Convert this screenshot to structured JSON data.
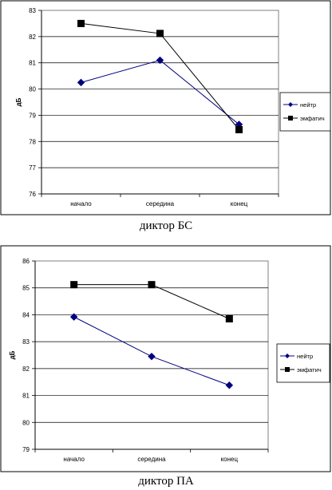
{
  "chart_data": [
    {
      "type": "line",
      "title": "диктор БС",
      "ylabel": "дБ",
      "xlabel": "",
      "categories": [
        "начало",
        "середина",
        "конец"
      ],
      "ylim": [
        76,
        83
      ],
      "yticks": [
        "76",
        "77",
        "78",
        "79",
        "80",
        "81",
        "82",
        "83"
      ],
      "grid": "horizontal",
      "legend_position": "right",
      "series": [
        {
          "name": "нейтр",
          "values": [
            80.25,
            81.1,
            78.65
          ],
          "color": "#00007f",
          "marker": "diamond"
        },
        {
          "name": "эмфатич",
          "values": [
            82.5,
            82.12,
            78.45
          ],
          "color": "#000000",
          "marker": "square"
        }
      ]
    },
    {
      "type": "line",
      "title": "диктор ПА",
      "ylabel": "дБ",
      "xlabel": "",
      "categories": [
        "начало",
        "середина",
        "конец"
      ],
      "ylim": [
        79,
        86
      ],
      "yticks": [
        "79",
        "80",
        "81",
        "82",
        "83",
        "84",
        "85",
        "86"
      ],
      "grid": "horizontal",
      "legend_position": "right",
      "series": [
        {
          "name": "нейтр",
          "values": [
            83.92,
            82.45,
            81.38
          ],
          "color": "#00007f",
          "marker": "diamond"
        },
        {
          "name": "эмфатич",
          "values": [
            85.12,
            85.12,
            83.85
          ],
          "color": "#000000",
          "marker": "square"
        }
      ]
    }
  ]
}
